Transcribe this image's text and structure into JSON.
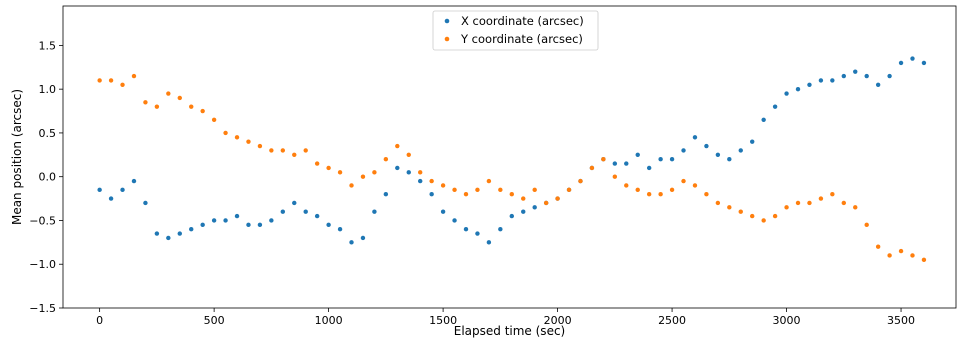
{
  "chart_data": {
    "type": "scatter",
    "title": "",
    "xlabel": "Elapsed time (sec)",
    "ylabel": "Mean position (arcsec)",
    "xlim": [
      -160,
      3740
    ],
    "ylim": [
      -1.5,
      1.95
    ],
    "xticks": [
      0,
      500,
      1000,
      1500,
      2000,
      2500,
      3000,
      3500
    ],
    "yticks": [
      -1.5,
      -1.0,
      -0.5,
      0.0,
      0.5,
      1.0,
      1.5
    ],
    "ytick_labels": [
      "−1.5",
      "−1.0",
      "−0.5",
      "0.0",
      "0.5",
      "1.0",
      "1.5"
    ],
    "grid": false,
    "legend_position": "top-center",
    "series": [
      {
        "name": "X coordinate (arcsec)",
        "color": "#1f77b4",
        "x": [
          0,
          50,
          100,
          150,
          200,
          250,
          300,
          350,
          400,
          450,
          500,
          550,
          600,
          650,
          700,
          750,
          800,
          850,
          900,
          950,
          1000,
          1050,
          1100,
          1150,
          1200,
          1250,
          1300,
          1350,
          1400,
          1450,
          1500,
          1550,
          1600,
          1650,
          1700,
          1750,
          1800,
          1850,
          1900,
          1950,
          2000,
          2050,
          2100,
          2150,
          2200,
          2250,
          2300,
          2350,
          2400,
          2450,
          2500,
          2550,
          2600,
          2650,
          2700,
          2750,
          2800,
          2850,
          2900,
          2950,
          3000,
          3050,
          3100,
          3150,
          3200,
          3250,
          3300,
          3350,
          3400,
          3450,
          3500,
          3550,
          3600
        ],
        "y": [
          -0.15,
          -0.25,
          -0.15,
          -0.05,
          -0.3,
          -0.65,
          -0.7,
          -0.65,
          -0.6,
          -0.55,
          -0.5,
          -0.5,
          -0.45,
          -0.55,
          -0.55,
          -0.5,
          -0.4,
          -0.3,
          -0.4,
          -0.45,
          -0.55,
          -0.6,
          -0.75,
          -0.7,
          -0.4,
          -0.2,
          0.1,
          0.05,
          -0.05,
          -0.2,
          -0.4,
          -0.5,
          -0.6,
          -0.65,
          -0.75,
          -0.6,
          -0.45,
          -0.4,
          -0.35,
          -0.3,
          -0.25,
          -0.15,
          -0.05,
          0.1,
          0.2,
          0.15,
          0.15,
          0.25,
          0.1,
          0.2,
          0.2,
          0.3,
          0.45,
          0.35,
          0.25,
          0.2,
          0.3,
          0.4,
          0.65,
          0.8,
          0.95,
          1.0,
          1.05,
          1.1,
          1.1,
          1.15,
          1.2,
          1.15,
          1.05,
          1.15,
          1.3,
          1.35,
          1.3
        ]
      },
      {
        "name": "Y coordinate (arcsec)",
        "color": "#ff7f0e",
        "x": [
          0,
          50,
          100,
          150,
          200,
          250,
          300,
          350,
          400,
          450,
          500,
          550,
          600,
          650,
          700,
          750,
          800,
          850,
          900,
          950,
          1000,
          1050,
          1100,
          1150,
          1200,
          1250,
          1300,
          1350,
          1400,
          1450,
          1500,
          1550,
          1600,
          1650,
          1700,
          1750,
          1800,
          1850,
          1900,
          1950,
          2000,
          2050,
          2100,
          2150,
          2200,
          2250,
          2300,
          2350,
          2400,
          2450,
          2500,
          2550,
          2600,
          2650,
          2700,
          2750,
          2800,
          2850,
          2900,
          2950,
          3000,
          3050,
          3100,
          3150,
          3200,
          3250,
          3300,
          3350,
          3400,
          3450,
          3500,
          3550,
          3600
        ],
        "y": [
          1.1,
          1.1,
          1.05,
          1.15,
          0.85,
          0.8,
          0.95,
          0.9,
          0.8,
          0.75,
          0.65,
          0.5,
          0.45,
          0.4,
          0.35,
          0.3,
          0.3,
          0.25,
          0.3,
          0.15,
          0.1,
          0.05,
          -0.1,
          0.0,
          0.05,
          0.2,
          0.35,
          0.25,
          0.05,
          -0.05,
          -0.1,
          -0.15,
          -0.2,
          -0.15,
          -0.05,
          -0.15,
          -0.2,
          -0.25,
          -0.15,
          -0.3,
          -0.25,
          -0.15,
          -0.05,
          0.1,
          0.2,
          0.0,
          -0.1,
          -0.15,
          -0.2,
          -0.2,
          -0.15,
          -0.05,
          -0.1,
          -0.2,
          -0.3,
          -0.35,
          -0.4,
          -0.45,
          -0.5,
          -0.45,
          -0.35,
          -0.3,
          -0.3,
          -0.25,
          -0.2,
          -0.3,
          -0.35,
          -0.55,
          -0.8,
          -0.9,
          -0.85,
          -0.9,
          -0.95
        ]
      }
    ]
  }
}
